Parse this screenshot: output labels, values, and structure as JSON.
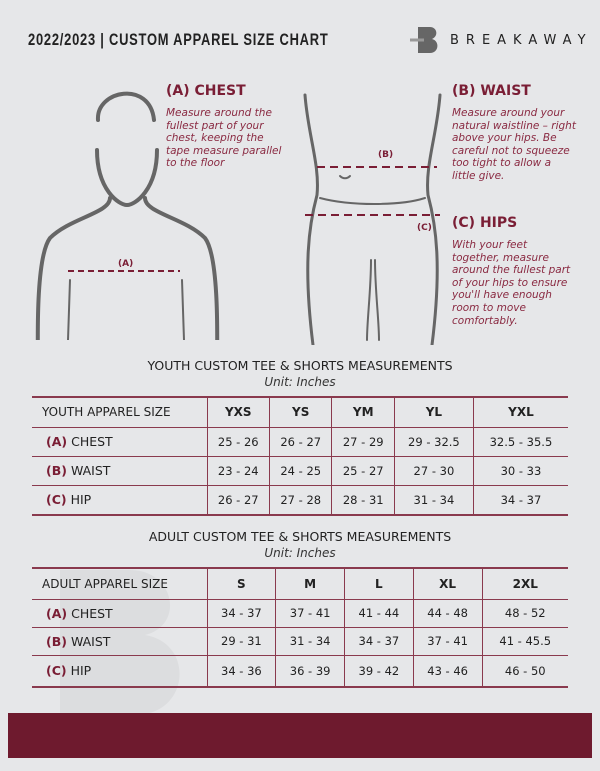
{
  "header": {
    "title": "2022/2023  |  CUSTOM APPAREL SIZE CHART",
    "brand": "BREAKAWAY"
  },
  "guides": {
    "chest": {
      "heading": "(A) CHEST",
      "text": "Measure around the fullest part of your chest, keeping the tape measure parallel to the floor",
      "marker": "(A)"
    },
    "waist": {
      "heading": "(B) WAIST",
      "text": "Measure around your natural waistline – right above your hips. Be careful not to squeeze too tight to allow a little give.",
      "marker": "(B)"
    },
    "hips": {
      "heading": "(C) HIPS",
      "text": "With your feet together, measure around the fullest part of your hips to ensure you'll have enough room to move comfortably.",
      "marker": "(C)"
    }
  },
  "colors": {
    "accent": "#7a1e35",
    "footer": "#6e1a2e",
    "background": "#e6e7e9"
  },
  "youth": {
    "title": "YOUTH CUSTOM TEE & SHORTS MEASUREMENTS",
    "unit": "Unit: Inches",
    "header": [
      "YOUTH APPAREL SIZE",
      "YXS",
      "YS",
      "YM",
      "YL",
      "YXL"
    ],
    "rows": [
      {
        "code": "(A)",
        "name": "CHEST",
        "values": [
          "25 - 26",
          "26 - 27",
          "27 - 29",
          "29 - 32.5",
          "32.5 - 35.5"
        ]
      },
      {
        "code": "(B)",
        "name": "WAIST",
        "values": [
          "23 - 24",
          "24 - 25",
          "25 - 27",
          "27 - 30",
          "30 - 33"
        ]
      },
      {
        "code": "(C)",
        "name": "HIP",
        "values": [
          "26 - 27",
          "27 - 28",
          "28 - 31",
          "31 - 34",
          "34 - 37"
        ]
      }
    ]
  },
  "adult": {
    "title": "ADULT CUSTOM TEE & SHORTS MEASUREMENTS",
    "unit": "Unit: Inches",
    "header": [
      "ADULT APPAREL SIZE",
      "S",
      "M",
      "L",
      "XL",
      "2XL"
    ],
    "rows": [
      {
        "code": "(A)",
        "name": "CHEST",
        "values": [
          "34 - 37",
          "37 - 41",
          "41 - 44",
          "44 - 48",
          "48 - 52"
        ]
      },
      {
        "code": "(B)",
        "name": "WAIST",
        "values": [
          "29 - 31",
          "31 - 34",
          "34 - 37",
          "37 - 41",
          "41 - 45.5"
        ]
      },
      {
        "code": "(C)",
        "name": "HIP",
        "values": [
          "34 - 36",
          "36 - 39",
          "39 - 42",
          "43 - 46",
          "46 - 50"
        ]
      }
    ]
  }
}
